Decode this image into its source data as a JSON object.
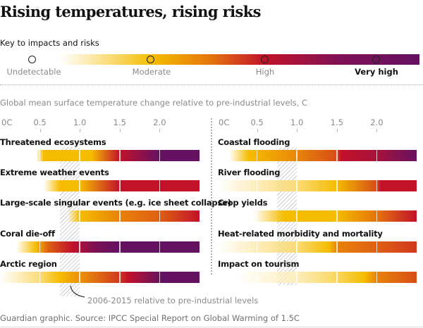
{
  "chart_data": {
    "type": "heatmap",
    "title": "Rising temperatures, rising risks",
    "legend": {
      "title": "Key to impacts and risks",
      "levels": [
        {
          "name": "Undetectable",
          "color": "#fff6da"
        },
        {
          "name": "Moderate",
          "color": "#f5bc00"
        },
        {
          "name": "High",
          "color": "#c2122a"
        },
        {
          "name": "Very high",
          "color": "#641161"
        }
      ]
    },
    "xlabel": "Global mean surface temperature change relative to pre-industrial levels, C",
    "xlim": [
      0,
      2.5
    ],
    "ticks": [
      "0C",
      "0.5",
      "1.0",
      "1.5",
      "2.0"
    ],
    "tick_values": [
      0,
      0.5,
      1.0,
      1.5,
      2.0
    ],
    "reference_band": {
      "label": "2006-2015 relative to pre-industrial levels",
      "range": [
        0.75,
        1.0
      ]
    },
    "risk_scale": "0 = undetectable, 1 = moderate, 2 = high, 3 = very high",
    "panels": [
      {
        "name": "left",
        "series": [
          {
            "name": "Threatened ecosystems",
            "points": [
              [
                0.45,
                0
              ],
              [
                0.55,
                1
              ],
              [
                1.15,
                1
              ],
              [
                1.5,
                2
              ],
              [
                1.95,
                2.8
              ],
              [
                2.05,
                3
              ],
              [
                2.5,
                3
              ]
            ]
          },
          {
            "name": "Extreme weather events",
            "points": [
              [
                0.55,
                0
              ],
              [
                0.75,
                1
              ],
              [
                1.0,
                1
              ],
              [
                1.5,
                2
              ],
              [
                2.5,
                2
              ]
            ]
          },
          {
            "name": "Large-scale singular events (e.g. ice sheet collapse)",
            "points": [
              [
                0.85,
                0
              ],
              [
                1.0,
                1
              ],
              [
                1.5,
                1.4
              ],
              [
                2.0,
                1.6
              ],
              [
                2.5,
                2
              ]
            ]
          },
          {
            "name": "Coral die-off",
            "points": [
              [
                0.2,
                0
              ],
              [
                0.45,
                1
              ],
              [
                0.6,
                1.6
              ],
              [
                0.9,
                2
              ],
              [
                1.2,
                2.6
              ],
              [
                1.5,
                3
              ],
              [
                2.5,
                3
              ]
            ]
          },
          {
            "name": "Arctic region",
            "points": [
              [
                0.0,
                0
              ],
              [
                0.5,
                0.5
              ],
              [
                0.75,
                1
              ],
              [
                1.0,
                1.3
              ],
              [
                1.5,
                1.8
              ],
              [
                1.6,
                2
              ],
              [
                2.0,
                2.9
              ],
              [
                2.05,
                3
              ],
              [
                2.5,
                3
              ]
            ]
          }
        ]
      },
      {
        "name": "right",
        "series": [
          {
            "name": "Coastal flooding",
            "points": [
              [
                0.15,
                0
              ],
              [
                0.4,
                1
              ],
              [
                0.9,
                1.3
              ],
              [
                1.5,
                1.7
              ],
              [
                1.55,
                2
              ],
              [
                2.0,
                2.2
              ],
              [
                2.5,
                2.9
              ]
            ]
          },
          {
            "name": "River flooding",
            "points": [
              [
                0.0,
                0
              ],
              [
                1.0,
                0.5
              ],
              [
                1.5,
                1
              ],
              [
                2.0,
                1.7
              ],
              [
                2.05,
                2
              ],
              [
                2.5,
                2
              ]
            ]
          },
          {
            "name": "Crop yields",
            "points": [
              [
                0.45,
                0
              ],
              [
                0.85,
                1
              ],
              [
                1.5,
                1
              ],
              [
                2.0,
                1.5
              ],
              [
                2.5,
                2
              ]
            ]
          },
          {
            "name": "Heat-related morbidity and mortality",
            "points": [
              [
                0.0,
                0
              ],
              [
                1.0,
                0.5
              ],
              [
                1.4,
                1
              ],
              [
                1.5,
                1.4
              ],
              [
                2.0,
                1.6
              ],
              [
                2.5,
                1.8
              ]
            ]
          },
          {
            "name": "Impact on tourism",
            "points": [
              [
                0.25,
                0
              ],
              [
                1.0,
                0.2
              ],
              [
                1.5,
                0.6
              ],
              [
                1.85,
                1
              ],
              [
                2.0,
                1.4
              ],
              [
                2.5,
                1.7
              ]
            ]
          }
        ]
      }
    ]
  },
  "header": {
    "title": "Rising temperatures, rising risks",
    "key_title": "Key to impacts and risks",
    "legend_labels": [
      "Undetectable",
      "Moderate",
      "High",
      "Very high"
    ]
  },
  "axis": {
    "subtitle": "Global mean surface temperature change relative to pre-industrial levels, C",
    "ticks": [
      "0C",
      "0.5",
      "1.0",
      "1.5",
      "2.0"
    ]
  },
  "annotation": "2006-2015 relative to pre-industrial levels",
  "footer": "Guardian graphic. Source: IPCC Special Report on Global Warming of 1.5C"
}
